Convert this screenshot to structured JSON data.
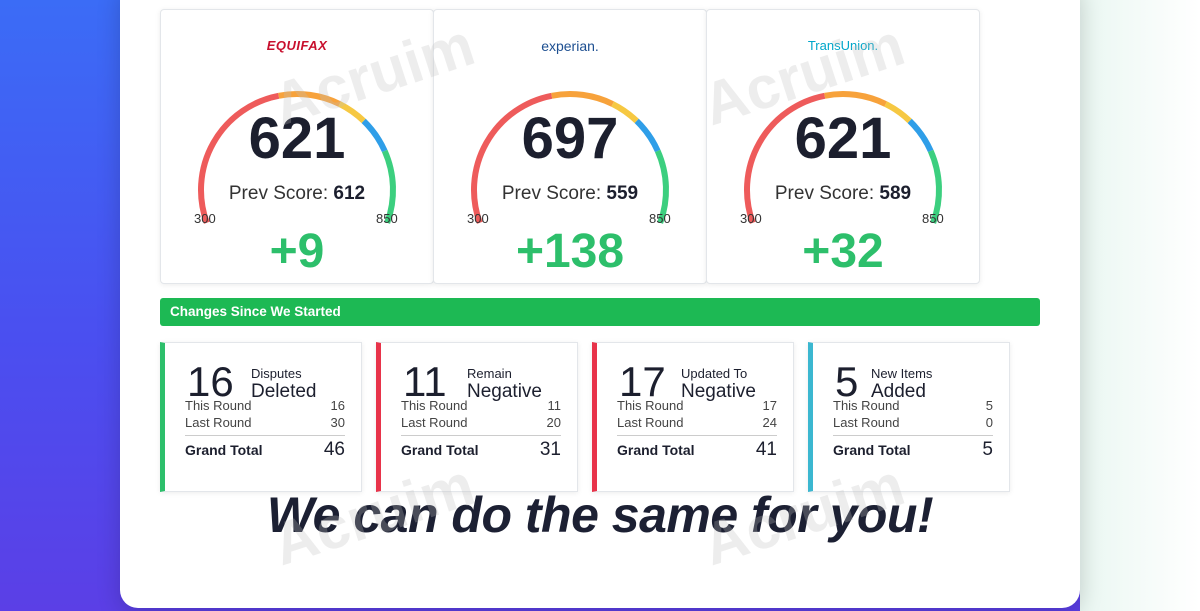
{
  "bureaus": [
    {
      "name": "EQUIFAX",
      "score": "621",
      "prev_label": "Prev Score:",
      "prev_score": "612",
      "range_min": "300",
      "range_max": "850",
      "change": "+9",
      "needle_fraction": 0.59
    },
    {
      "name": "experian.",
      "score": "697",
      "prev_label": "Prev Score:",
      "prev_score": "559",
      "range_min": "300",
      "range_max": "850",
      "change": "+138",
      "needle_fraction": 0.72
    },
    {
      "name": "TransUnion.",
      "score": "621",
      "prev_label": "Prev Score:",
      "prev_score": "589",
      "range_min": "300",
      "range_max": "850",
      "change": "+32",
      "needle_fraction": 0.59
    }
  ],
  "changes_bar": {
    "label": "Changes Since We Started"
  },
  "stats": [
    {
      "number": "16",
      "title_top": "Disputes",
      "title_main": "Deleted",
      "this_round_label": "This Round",
      "this_round": "16",
      "last_round_label": "Last Round",
      "last_round": "30",
      "total_label": "Grand Total",
      "total": "46",
      "accent": "#2dbf6b"
    },
    {
      "number": "11",
      "title_top": "Remain",
      "title_main": "Negative",
      "this_round_label": "This Round",
      "this_round": "11",
      "last_round_label": "Last Round",
      "last_round": "20",
      "total_label": "Grand Total",
      "total": "31",
      "accent": "#e8334a"
    },
    {
      "number": "17",
      "title_top": "Updated To",
      "title_main": "Negative",
      "this_round_label": "This Round",
      "this_round": "17",
      "last_round_label": "Last Round",
      "last_round": "24",
      "total_label": "Grand Total",
      "total": "41",
      "accent": "#e8334a"
    },
    {
      "number": "5",
      "title_top": "New Items",
      "title_main": "Added",
      "this_round_label": "This Round",
      "this_round": "5",
      "last_round_label": "Last Round",
      "last_round": "0",
      "total_label": "Grand Total",
      "total": "5",
      "accent": "#3bb7d0"
    }
  ],
  "tagline": "We can do the same for you!",
  "watermark_text": "Acruim",
  "colors": {
    "gauge_red": "#ee5b5b",
    "gauge_orange": "#f7a23b",
    "gauge_yellow": "#f6c842",
    "gauge_blue": "#2f9ee8",
    "gauge_green": "#3ccf7f",
    "positive_green": "#2dbf6b",
    "bar_green": "#1db954"
  }
}
